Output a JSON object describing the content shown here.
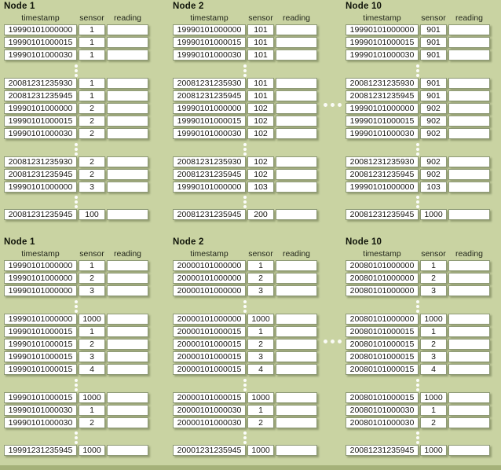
{
  "colors": {
    "background": "#c9d3a2",
    "cell_background": "#ffffff",
    "cell_border": "#8e9a76",
    "ellipsis_dots": "#ffffff",
    "bottom_strip": "#a5b179",
    "text": "#15150f"
  },
  "icons": {
    "omitted_rows": "vertical-ellipsis",
    "omitted_nodes": "horizontal-ellipsis"
  },
  "columns": [
    "timestamp",
    "sensor",
    "reading"
  ],
  "sections": [
    {
      "title": "Node 1",
      "groups": [
        [
          [
            "19990101000000",
            "1",
            ""
          ],
          [
            "19990101000015",
            "1",
            ""
          ],
          [
            "19990101000030",
            "1",
            ""
          ]
        ],
        [
          [
            "20081231235930",
            "1",
            ""
          ],
          [
            "20081231235945",
            "1",
            ""
          ],
          [
            "19990101000000",
            "2",
            ""
          ],
          [
            "19990101000015",
            "2",
            ""
          ],
          [
            "19990101000030",
            "2",
            ""
          ]
        ],
        [
          [
            "20081231235930",
            "2",
            ""
          ],
          [
            "20081231235945",
            "2",
            ""
          ],
          [
            "19990101000000",
            "3",
            ""
          ]
        ],
        [
          [
            "20081231235945",
            "100",
            ""
          ]
        ]
      ]
    },
    {
      "title": "Node 2",
      "groups": [
        [
          [
            "19990101000000",
            "101",
            ""
          ],
          [
            "19990101000015",
            "101",
            ""
          ],
          [
            "19990101000030",
            "101",
            ""
          ]
        ],
        [
          [
            "20081231235930",
            "101",
            ""
          ],
          [
            "20081231235945",
            "101",
            ""
          ],
          [
            "19990101000000",
            "102",
            ""
          ],
          [
            "19990101000015",
            "102",
            ""
          ],
          [
            "19990101000030",
            "102",
            ""
          ]
        ],
        [
          [
            "20081231235930",
            "102",
            ""
          ],
          [
            "20081231235945",
            "102",
            ""
          ],
          [
            "19990101000000",
            "103",
            ""
          ]
        ],
        [
          [
            "20081231235945",
            "200",
            ""
          ]
        ]
      ]
    },
    {
      "title": "Node 10",
      "groups": [
        [
          [
            "19990101000000",
            "901",
            ""
          ],
          [
            "19990101000015",
            "901",
            ""
          ],
          [
            "19990101000030",
            "901",
            ""
          ]
        ],
        [
          [
            "20081231235930",
            "901",
            ""
          ],
          [
            "20081231235945",
            "901",
            ""
          ],
          [
            "19990101000000",
            "902",
            ""
          ],
          [
            "19990101000015",
            "902",
            ""
          ],
          [
            "19990101000030",
            "902",
            ""
          ]
        ],
        [
          [
            "20081231235930",
            "902",
            ""
          ],
          [
            "20081231235945",
            "902",
            ""
          ],
          [
            "19990101000000",
            "103",
            ""
          ]
        ],
        [
          [
            "20081231235945",
            "1000",
            ""
          ]
        ]
      ]
    },
    {
      "title": "Node 1",
      "groups": [
        [
          [
            "19990101000000",
            "1",
            ""
          ],
          [
            "19990101000000",
            "2",
            ""
          ],
          [
            "19990101000000",
            "3",
            ""
          ]
        ],
        [
          [
            "19990101000000",
            "1000",
            ""
          ],
          [
            "19990101000015",
            "1",
            ""
          ],
          [
            "19990101000015",
            "2",
            ""
          ],
          [
            "19990101000015",
            "3",
            ""
          ],
          [
            "19990101000015",
            "4",
            ""
          ]
        ],
        [
          [
            "19990101000015",
            "1000",
            ""
          ],
          [
            "19990101000030",
            "1",
            ""
          ],
          [
            "19990101000030",
            "2",
            ""
          ]
        ],
        [
          [
            "19991231235945",
            "1000",
            ""
          ]
        ]
      ]
    },
    {
      "title": "Node 2",
      "groups": [
        [
          [
            "20000101000000",
            "1",
            ""
          ],
          [
            "20000101000000",
            "2",
            ""
          ],
          [
            "20000101000000",
            "3",
            ""
          ]
        ],
        [
          [
            "20000101000000",
            "1000",
            ""
          ],
          [
            "20000101000015",
            "1",
            ""
          ],
          [
            "20000101000015",
            "2",
            ""
          ],
          [
            "20000101000015",
            "3",
            ""
          ],
          [
            "20000101000015",
            "4",
            ""
          ]
        ],
        [
          [
            "20000101000015",
            "1000",
            ""
          ],
          [
            "20000101000030",
            "1",
            ""
          ],
          [
            "20000101000030",
            "2",
            ""
          ]
        ],
        [
          [
            "20001231235945",
            "1000",
            ""
          ]
        ]
      ]
    },
    {
      "title": "Node 10",
      "groups": [
        [
          [
            "20080101000000",
            "1",
            ""
          ],
          [
            "20080101000000",
            "2",
            ""
          ],
          [
            "20080101000000",
            "3",
            ""
          ]
        ],
        [
          [
            "20080101000000",
            "1000",
            ""
          ],
          [
            "20080101000015",
            "1",
            ""
          ],
          [
            "20080101000015",
            "2",
            ""
          ],
          [
            "20080101000015",
            "3",
            ""
          ],
          [
            "20080101000015",
            "4",
            ""
          ]
        ],
        [
          [
            "20080101000015",
            "1000",
            ""
          ],
          [
            "20080101000030",
            "1",
            ""
          ],
          [
            "20080101000030",
            "2",
            ""
          ]
        ],
        [
          [
            "20081231235945",
            "1000",
            ""
          ]
        ]
      ]
    }
  ]
}
